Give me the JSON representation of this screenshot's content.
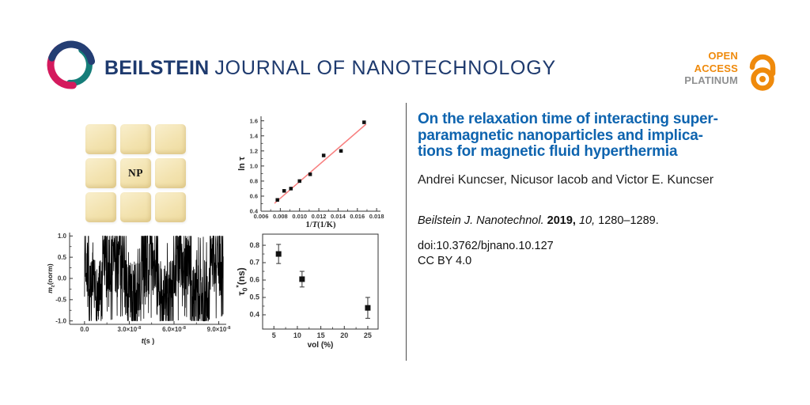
{
  "header": {
    "brand_bold": "BEILSTEIN",
    "brand_rest": "JOURNAL OF NANOTECHNOLOGY",
    "brand_color": "#1e3a6e",
    "logo_colors": {
      "navy": "#243e73",
      "teal": "#157d79",
      "crimson": "#d41a5d"
    },
    "open_access": {
      "line1": "OPEN",
      "line2": "ACCESS",
      "line3": "PLATINUM",
      "orange": "#ef8a0c",
      "gray": "#8f9091"
    }
  },
  "figure": {
    "np_label": "NP"
  },
  "article": {
    "title_lines": [
      "On the relaxation time of interacting super-",
      "paramagnetic nanoparticles and implica-",
      "tions for magnetic fluid hyperthermia"
    ],
    "title_color": "#0e64af",
    "authors": "Andrei Kuncser, Nicusor Iacob and Victor E. Kuncser",
    "citation": {
      "journal": "Beilstein J. Nanotechnol.",
      "year": "2019,",
      "volume": "10,",
      "pages": "1280–1289."
    },
    "doi": "doi:10.3762/bjnano.10.127",
    "license": "CC BY 4.0"
  },
  "chart_data": [
    {
      "id": "telegraph",
      "type": "line",
      "title": "",
      "xlabel": [
        {
          "t": "t",
          "i": true
        },
        {
          "t": "(s )"
        }
      ],
      "ylabel": [
        {
          "t": "m",
          "i": true,
          "b": true
        },
        {
          "t": "z",
          "sub": true
        },
        {
          "t": "(norm)"
        }
      ],
      "xlim": [
        -1e-08,
        9.5e-08
      ],
      "ylim": [
        -1.08,
        1.08
      ],
      "frame": "L",
      "grid": false,
      "xticks": [
        {
          "v": 0,
          "runs": [
            {
              "t": "0.0"
            }
          ]
        },
        {
          "v": 3e-08,
          "runs": [
            {
              "t": "3.0×10"
            },
            {
              "t": "-8",
              "sup": true
            }
          ]
        },
        {
          "v": 6e-08,
          "runs": [
            {
              "t": "6.0×10"
            },
            {
              "t": "-8",
              "sup": true
            }
          ]
        },
        {
          "v": 9e-08,
          "runs": [
            {
              "t": "9.0×10"
            },
            {
              "t": "-8",
              "sup": true
            }
          ]
        }
      ],
      "yticks": [
        {
          "v": -1.0,
          "label": "-1.0"
        },
        {
          "v": -0.5,
          "label": "-0.5"
        },
        {
          "v": 0.0,
          "label": "0.0"
        },
        {
          "v": 0.5,
          "label": "0.5"
        },
        {
          "v": 1.0,
          "label": "1.0"
        }
      ],
      "minor_ticks": true,
      "line_color": "#000000",
      "signal": {
        "kind": "random_telegraph_noise_between_plus_minus_1",
        "seed": 7,
        "n_points": 780,
        "t_start": 0,
        "t_end": 9.3e-08,
        "levels": [
          [
            0.0,
            0.03,
            1
          ],
          [
            0.03,
            0.13,
            -1
          ],
          [
            0.13,
            0.3,
            1
          ],
          [
            0.3,
            0.41,
            -1
          ],
          [
            0.41,
            0.53,
            1
          ],
          [
            0.53,
            0.64,
            -1
          ],
          [
            0.64,
            0.77,
            1
          ],
          [
            0.77,
            0.9,
            -1
          ],
          [
            0.9,
            1.0,
            1
          ]
        ],
        "base_amp": 0.5,
        "noise_amp": 0.95,
        "cross_prob": 0.06,
        "clip": [
          -1,
          1
        ]
      }
    },
    {
      "id": "arrhenius",
      "type": "scatter",
      "title": "",
      "xlabel": [
        {
          "t": "1/",
          "serif": true,
          "b": true
        },
        {
          "t": "T",
          "serif": true,
          "b": true,
          "i": true
        },
        {
          "t": "(1/K)",
          "serif": true,
          "b": true
        }
      ],
      "ylabel": [
        {
          "t": "ln τ",
          "b": true
        }
      ],
      "xlim": [
        0.006,
        0.0184
      ],
      "ylim": [
        0.4,
        1.66
      ],
      "frame": "L",
      "grid": false,
      "xticks": [
        {
          "v": 0.006,
          "label": "0.006"
        },
        {
          "v": 0.008,
          "label": "0.008"
        },
        {
          "v": 0.01,
          "label": "0.010"
        },
        {
          "v": 0.012,
          "label": "0.012"
        },
        {
          "v": 0.014,
          "label": "0.014"
        },
        {
          "v": 0.016,
          "label": "0.016"
        },
        {
          "v": 0.018,
          "label": "0.018"
        }
      ],
      "yticks": [
        {
          "v": 0.4,
          "label": "0.4"
        },
        {
          "v": 0.6,
          "label": "0.6"
        },
        {
          "v": 0.8,
          "label": "0.8"
        },
        {
          "v": 1.0,
          "label": "1.0"
        },
        {
          "v": 1.2,
          "label": "1.2"
        },
        {
          "v": 1.4,
          "label": "1.4"
        },
        {
          "v": 1.6,
          "label": "1.6"
        }
      ],
      "minor_ticks": true,
      "marker": {
        "shape": "square",
        "size": 4.5,
        "color": "#111111"
      },
      "points": [
        [
          0.0077,
          0.55
        ],
        [
          0.0084,
          0.67
        ],
        [
          0.0091,
          0.7
        ],
        [
          0.01,
          0.8
        ],
        [
          0.0111,
          0.89
        ],
        [
          0.0125,
          1.14
        ],
        [
          0.0143,
          1.2
        ],
        [
          0.0167,
          1.58
        ]
      ],
      "fit_line": {
        "x1": 0.0074,
        "y1": 0.505,
        "x2": 0.0169,
        "y2": 1.555,
        "color": "#f87f7f"
      }
    },
    {
      "id": "tau0",
      "type": "scatter_errorbar",
      "title": "",
      "xlabel": [
        {
          "t": "vol (%)"
        }
      ],
      "ylabel": [
        {
          "t": "τ",
          "b": true
        },
        {
          "t": "0",
          "sub": true,
          "b": true
        },
        {
          "t": "*",
          "sup": true,
          "b": true
        },
        {
          "t": "(ns)",
          "b": true
        }
      ],
      "xlim": [
        2.6,
        27.2
      ],
      "ylim": [
        0.318,
        0.864
      ],
      "frame": "box",
      "grid": false,
      "xticks": [
        {
          "v": 5,
          "label": "5"
        },
        {
          "v": 10,
          "label": "10"
        },
        {
          "v": 15,
          "label": "15"
        },
        {
          "v": 20,
          "label": "20"
        },
        {
          "v": 25,
          "label": "25"
        }
      ],
      "yticks": [
        {
          "v": 0.4,
          "label": "0.4"
        },
        {
          "v": 0.5,
          "label": "0.5"
        },
        {
          "v": 0.6,
          "label": "0.6"
        },
        {
          "v": 0.7,
          "label": "0.7"
        },
        {
          "v": 0.8,
          "label": "0.8"
        }
      ],
      "minor_ticks": true,
      "marker": {
        "shape": "square",
        "size": 7,
        "color": "#111111"
      },
      "points": [
        {
          "x": 6,
          "y": 0.75,
          "err": 0.055
        },
        {
          "x": 11,
          "y": 0.605,
          "err": 0.045
        },
        {
          "x": 25,
          "y": 0.44,
          "err": 0.06
        }
      ]
    }
  ]
}
